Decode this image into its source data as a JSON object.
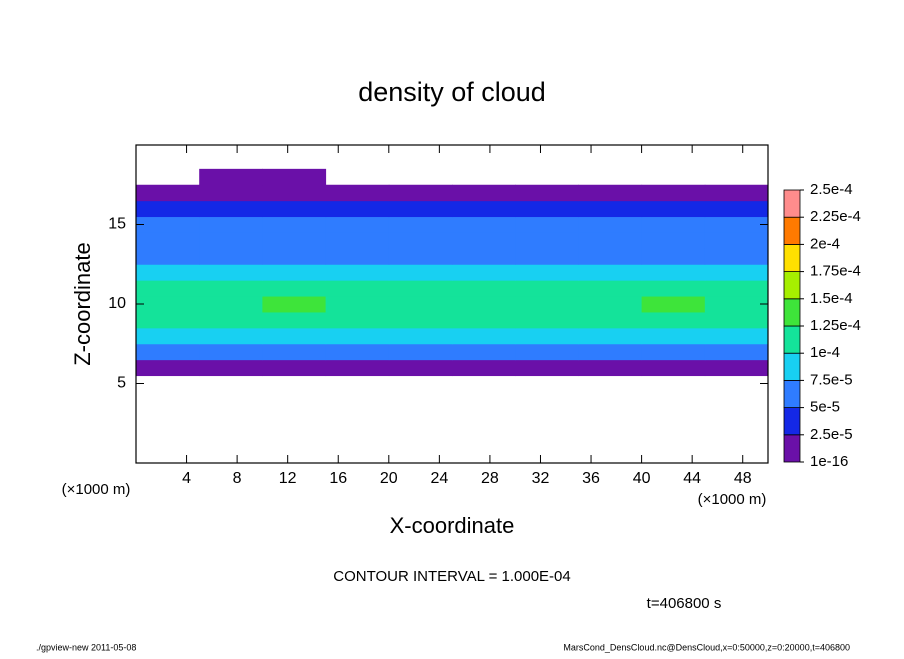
{
  "chart_data": {
    "type": "heatmap",
    "title": "density of cloud",
    "x_label": "X-coordinate",
    "y_label": "Z-coordinate",
    "y_unit": "(×1000 m)",
    "x_unit": "(×1000 m)",
    "note": "CONTOUR INTERVAL = 1.000E-04",
    "time": "t=406800 s",
    "footer_left": "./gpview-new  2011-05-08",
    "footer_right": "MarsCond_DensCloud.nc@DensCloud,x=0:50000,z=0:20000,t=406800",
    "xlim": [
      0,
      50
    ],
    "xticks": [
      4,
      8,
      12,
      16,
      20,
      24,
      28,
      32,
      36,
      40,
      44,
      48
    ],
    "ylim": [
      0,
      20
    ],
    "yticks": [
      5,
      10,
      15
    ],
    "x": [
      2.5,
      7.5,
      12.5,
      17.5,
      22.5,
      27.5,
      32.5,
      37.5,
      42.5,
      47.5
    ],
    "y": [
      6,
      7,
      8,
      9,
      10,
      11,
      12,
      13,
      14,
      15,
      16,
      17,
      18
    ],
    "values": [
      [
        2e-05,
        1.5e-05,
        2e-05,
        2e-05,
        1.8e-05,
        2e-05,
        1.5e-05,
        2e-05,
        1.5e-05,
        2e-05
      ],
      [
        5.5e-05,
        6e-05,
        5.5e-05,
        6e-05,
        6e-05,
        5.5e-05,
        6e-05,
        5.5e-05,
        6e-05,
        5.5e-05
      ],
      [
        8.5e-05,
        9e-05,
        8.8e-05,
        8.5e-05,
        8.5e-05,
        8.2e-05,
        8.5e-05,
        8.8e-05,
        9e-05,
        8.5e-05
      ],
      [
        0.000105,
        0.00011,
        0.000115,
        0.000108,
        0.000105,
        0.000102,
        0.000105,
        0.00011,
        0.000112,
        0.000105
      ],
      [
        0.000115,
        0.00012,
        0.000127,
        0.000118,
        0.000112,
        0.00011,
        0.000115,
        0.00012,
        0.000128,
        0.000115
      ],
      [
        0.000102,
        0.000105,
        0.000108,
        0.00011,
        0.000102,
        0.000101,
        0.000102,
        0.000105,
        0.000108,
        0.000102
      ],
      [
        7.8e-05,
        8e-05,
        8.5e-05,
        8.8e-05,
        8e-05,
        7.8e-05,
        7.6e-05,
        8e-05,
        8e-05,
        7.8e-05
      ],
      [
        6e-05,
        6.2e-05,
        6.5e-05,
        6.2e-05,
        6e-05,
        6e-05,
        6e-05,
        6e-05,
        6e-05,
        6e-05
      ],
      [
        5.5e-05,
        5.5e-05,
        5.5e-05,
        5.5e-05,
        5.2e-05,
        5.5e-05,
        5.5e-05,
        5.2e-05,
        5.5e-05,
        5.5e-05
      ],
      [
        5.2e-05,
        5.2e-05,
        5.3e-05,
        5.2e-05,
        5.1e-05,
        5.1e-05,
        5.3e-05,
        5.1e-05,
        5.2e-05,
        5.2e-05
      ],
      [
        4e-05,
        4.2e-05,
        4.2e-05,
        4e-05,
        4e-05,
        3.8e-05,
        4e-05,
        4e-05,
        4.2e-05,
        4e-05
      ],
      [
        1.5e-05,
        1.5e-05,
        1.5e-05,
        1.5e-05,
        1.5e-05,
        1.5e-05,
        1.5e-05,
        1.5e-05,
        1.5e-05,
        1.5e-05
      ],
      [
        0,
        1e-05,
        1e-05,
        0,
        0,
        0,
        0,
        0,
        0,
        0
      ]
    ],
    "levels": [
      1e-16,
      {
        "value": 2.5e-05,
        "label": "2.5e-5"
      },
      {
        "value": 5e-05,
        "label": "5e-5"
      },
      {
        "value": 7.5e-05,
        "label": "7.5e-5"
      },
      {
        "value": 0.0001,
        "label": "1e-4"
      },
      {
        "value": 0.000125,
        "label": "1.25e-4"
      },
      {
        "value": 0.00015,
        "label": "1.5e-4"
      },
      {
        "value": 0.000175,
        "label": "1.75e-4"
      },
      {
        "value": 0.0002,
        "label": "2e-4"
      },
      {
        "value": 0.000225,
        "label": "2.25e-4"
      },
      {
        "value": 0.00025,
        "label": "2.5e-4"
      }
    ],
    "colors": [
      "#6a10a8",
      "#1428e6",
      "#2f7cff",
      "#18d0f2",
      "#14e39a",
      "#3ee43a",
      "#a6ef00",
      "#ffe000",
      "#ff7a00",
      "#ff8c8c"
    ]
  }
}
